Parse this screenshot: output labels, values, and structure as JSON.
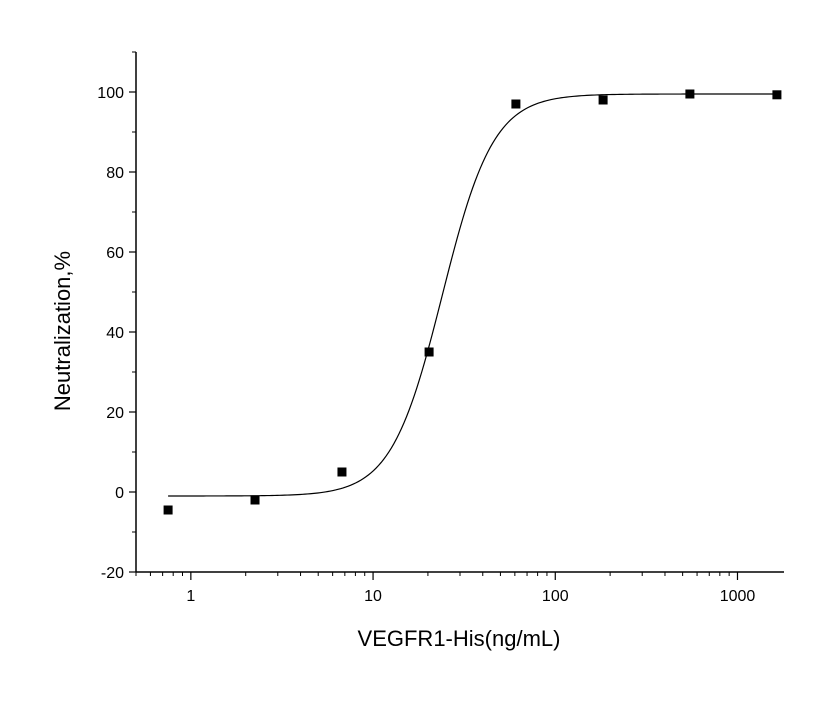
{
  "chart_data": {
    "type": "scatter",
    "title": "",
    "xlabel": "VEGFR1-His(ng/mL)",
    "ylabel": "Neutralization,%",
    "x_scale": "log",
    "xlim": [
      0.5,
      1800
    ],
    "ylim": [
      -20,
      110
    ],
    "x_ticks": [
      1,
      10,
      100,
      1000
    ],
    "x_tick_labels": [
      "1",
      "10",
      "100",
      "1000"
    ],
    "y_ticks": [
      -20,
      0,
      20,
      40,
      60,
      80,
      100
    ],
    "y_tick_labels": [
      "-20",
      "0",
      "20",
      "40",
      "60",
      "80",
      "100"
    ],
    "grid": false,
    "legend": "none",
    "series": [
      {
        "type": "scatter",
        "marker": "square",
        "color": "#000000",
        "x": [
          0.75,
          2.25,
          6.75,
          20.3,
          60.8,
          183,
          548,
          1646
        ],
        "y": [
          -4.5,
          -2,
          5,
          35,
          97,
          98,
          99.5,
          99.3
        ]
      },
      {
        "type": "line",
        "fit": "four-parameter logistic",
        "color": "#000000",
        "bottom": -1,
        "top": 99.5,
        "ec50": 24,
        "hill": 3.1,
        "x_range": [
          0.75,
          1646
        ]
      }
    ]
  }
}
